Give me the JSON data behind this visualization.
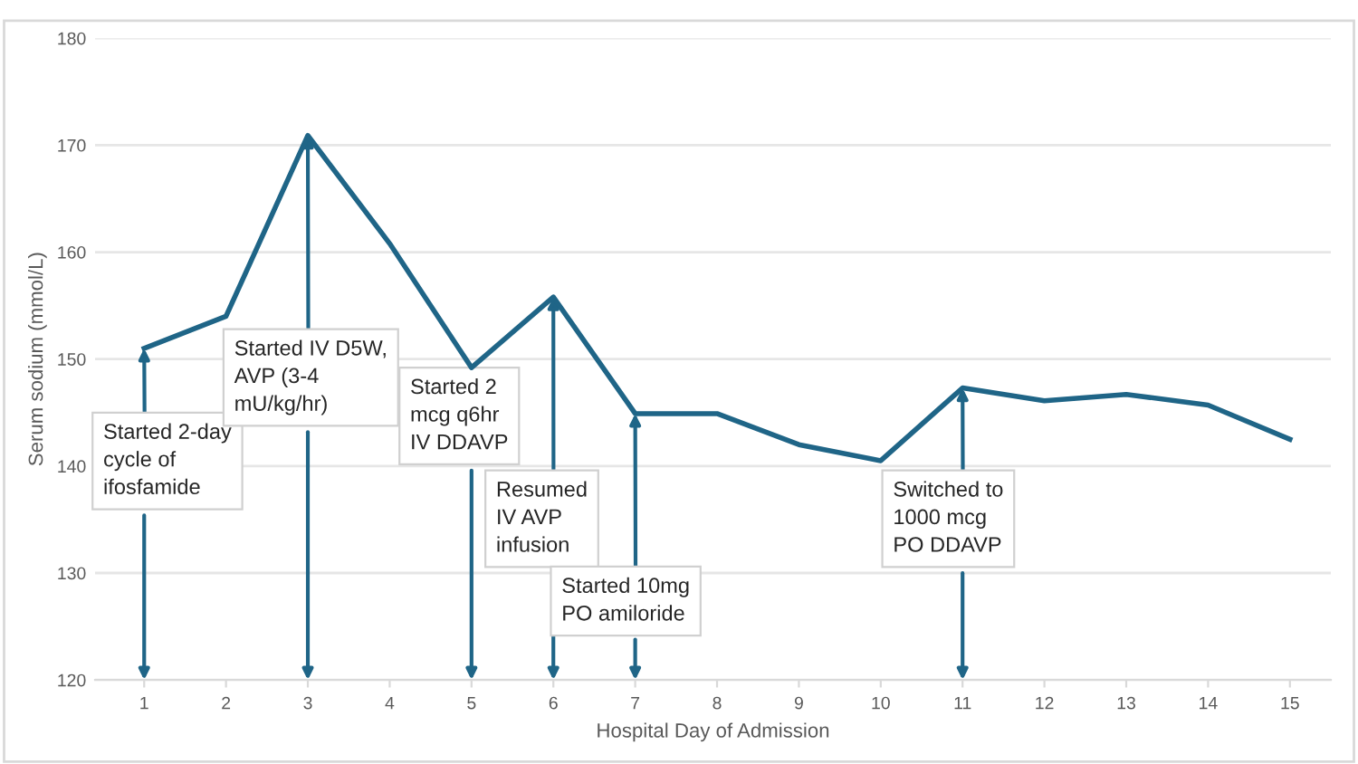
{
  "chart_data": {
    "type": "line",
    "xlabel": "Hospital Day of Admission",
    "ylabel": "Serum sodium (mmol/L)",
    "categories": [
      "1",
      "2",
      "3",
      "4",
      "5",
      "6",
      "7",
      "8",
      "9",
      "10",
      "11",
      "12",
      "13",
      "14",
      "15"
    ],
    "series": [
      {
        "color": "#1f6587",
        "values": [
          151.0,
          154.0,
          170.9,
          160.8,
          149.2,
          155.8,
          144.9,
          144.9,
          142.0,
          140.5,
          147.3,
          146.1,
          146.7,
          145.7,
          142.5
        ]
      }
    ],
    "ylim": [
      120,
      180
    ],
    "yticks": [
      120,
      130,
      140,
      150,
      160,
      170,
      180
    ],
    "grid": "y",
    "marker": "none",
    "line_style": "solid",
    "legend": false,
    "annotations": [
      {
        "text": "Started 2-day\ncycle of\nifosfamide",
        "x": "1",
        "y": 151.0
      },
      {
        "text": "Started IV D5W,\nAVP (3-4\nmU/kg/hr)",
        "x": "3",
        "y": 170.9
      },
      {
        "text": "Started 2\nmcg q6hr\nIV DDAVP",
        "x": "5",
        "y": 149.2
      },
      {
        "text": "Resumed\nIV AVP\ninfusion",
        "x": "6",
        "y": 155.8
      },
      {
        "text": "Started 10mg\nPO amiloride",
        "x": "7",
        "y": 144.9
      },
      {
        "text": "Switched to\n1000 mcg\nPO DDAVP",
        "x": "11",
        "y": 147.3
      }
    ]
  }
}
